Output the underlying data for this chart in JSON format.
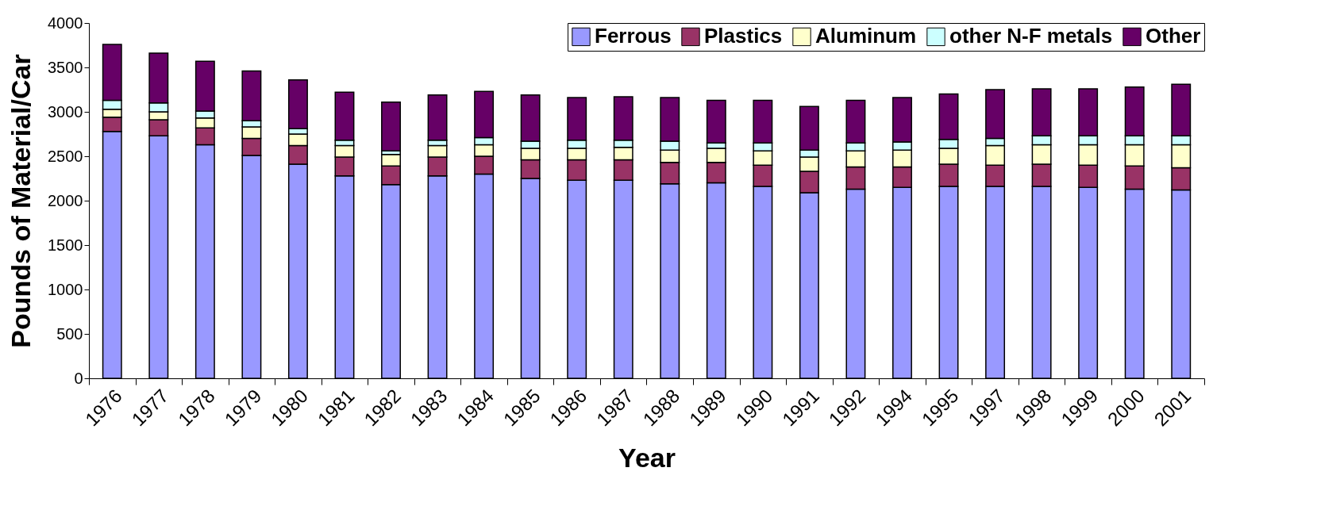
{
  "chart_data": {
    "type": "bar",
    "stacked": true,
    "xlabel": "Year",
    "ylabel": "Pounds of Material/Car",
    "categories": [
      "1976",
      "1977",
      "1978",
      "1979",
      "1980",
      "1981",
      "1982",
      "1983",
      "1984",
      "1985",
      "1986",
      "1987",
      "1988",
      "1989",
      "1990",
      "1991",
      "1992",
      "1994",
      "1995",
      "1997",
      "1998",
      "1999",
      "2000",
      "2001"
    ],
    "series": [
      {
        "name": "Ferrous",
        "color": "#9999ff",
        "values": [
          2780,
          2730,
          2630,
          2510,
          2410,
          2280,
          2180,
          2280,
          2300,
          2250,
          2230,
          2230,
          2190,
          2200,
          2160,
          2090,
          2130,
          2150,
          2160,
          2160,
          2160,
          2150,
          2130,
          2120
        ]
      },
      {
        "name": "Plastics",
        "color": "#993366",
        "values": [
          160,
          180,
          190,
          190,
          210,
          210,
          210,
          210,
          200,
          210,
          230,
          230,
          240,
          230,
          240,
          240,
          250,
          230,
          250,
          240,
          250,
          250,
          260,
          250
        ]
      },
      {
        "name": "Aluminum",
        "color": "#ffffcc",
        "values": [
          90,
          90,
          110,
          130,
          130,
          130,
          130,
          130,
          130,
          130,
          130,
          140,
          140,
          160,
          160,
          160,
          180,
          190,
          180,
          220,
          220,
          230,
          240,
          260
        ]
      },
      {
        "name": "other N-F metals",
        "color": "#ccffff",
        "values": [
          100,
          100,
          80,
          70,
          60,
          60,
          40,
          60,
          80,
          80,
          90,
          80,
          100,
          60,
          90,
          80,
          90,
          90,
          100,
          80,
          100,
          100,
          100,
          100
        ]
      },
      {
        "name": "Other",
        "color": "#660066",
        "values": [
          630,
          560,
          560,
          560,
          550,
          540,
          550,
          510,
          520,
          520,
          480,
          490,
          490,
          480,
          480,
          490,
          480,
          500,
          510,
          550,
          530,
          530,
          550,
          580
        ]
      }
    ],
    "ylim": [
      0,
      4000
    ],
    "yticks": [
      0,
      500,
      1000,
      1500,
      2000,
      2500,
      3000,
      3500,
      4000
    ],
    "grid": false,
    "legend": "top right"
  }
}
